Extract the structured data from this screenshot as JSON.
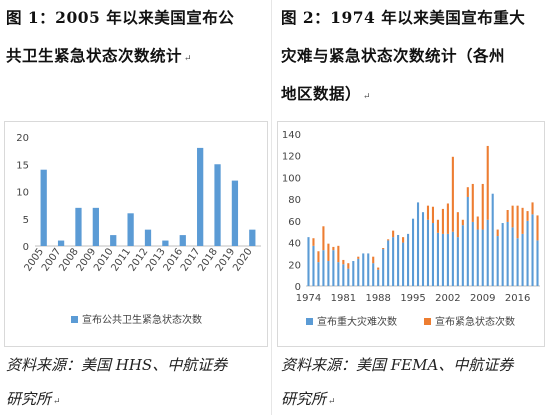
{
  "figures": [
    {
      "title_lines": [
        "图 1：2005 年以来美国宣布公",
        "共卫生紧急状态次数统计"
      ],
      "source_lines": [
        "资料来源：美国 HHS、中航证券",
        "研究所"
      ]
    },
    {
      "title_lines": [
        "图 2：1974 年以来美国宣布重大",
        "灾难与紧急状态次数统计（各州",
        "地区数据）"
      ],
      "source_lines": [
        "资料来源：美国 FEMA、中航证券",
        "研究所"
      ]
    }
  ],
  "paragraph_mark": "↵",
  "chart_data": [
    {
      "type": "bar",
      "categories": [
        "2005",
        "2007",
        "2008",
        "2009",
        "2010",
        "2011",
        "2012",
        "2013",
        "2016",
        "2017",
        "2018",
        "2019",
        "2020"
      ],
      "series": [
        {
          "name": "宣布公共卫生紧急状态次数",
          "color": "#5b9bd5",
          "values": [
            14,
            1,
            7,
            7,
            2,
            6,
            3,
            1,
            2,
            18,
            15,
            12,
            3
          ]
        }
      ],
      "ylim": [
        0,
        20
      ],
      "yticks": [
        0,
        5,
        10,
        15,
        20
      ],
      "legend_position": "bottom",
      "grid": false
    },
    {
      "type": "bar",
      "stacked": true,
      "x_range": [
        1974,
        2020
      ],
      "xtick_labels": [
        "1974",
        "1981",
        "1988",
        "1995",
        "2002",
        "2009",
        "2016"
      ],
      "series": [
        {
          "name": "宣布重大灾难次数",
          "color": "#5b9bd5",
          "values": [
            45,
            37,
            22,
            33,
            23,
            33,
            22,
            20,
            16,
            23,
            25,
            30,
            30,
            21,
            15,
            34,
            42,
            45,
            47,
            40,
            48,
            62,
            77,
            68,
            61,
            58,
            49,
            48,
            48,
            50,
            45,
            56,
            82,
            59,
            52,
            52,
            61,
            85,
            46,
            58,
            59,
            54,
            44,
            48,
            60,
            66,
            42
          ]
        },
        {
          "name": "宣布紧急状态次数",
          "color": "#ed7d31",
          "values": [
            0,
            7,
            10,
            22,
            16,
            3,
            15,
            4,
            5,
            0,
            2,
            0,
            0,
            6,
            2,
            1,
            1,
            6,
            0,
            5,
            0,
            0,
            0,
            0,
            13,
            15,
            12,
            23,
            28,
            69,
            23,
            5,
            9,
            35,
            12,
            42,
            68,
            0,
            6,
            0,
            11,
            20,
            30,
            24,
            9,
            11,
            23
          ]
        }
      ],
      "ylim": [
        0,
        140
      ],
      "yticks": [
        0,
        20,
        40,
        60,
        80,
        100,
        120,
        140
      ],
      "legend_position": "bottom",
      "grid": false
    }
  ]
}
